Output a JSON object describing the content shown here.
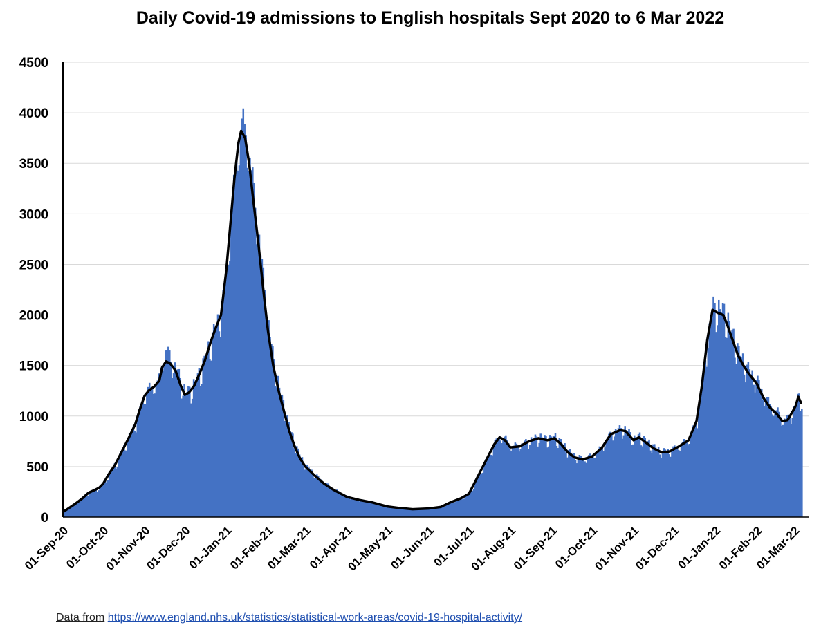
{
  "chart_data": {
    "type": "bar",
    "title": "Daily Covid-19 admissions to English hospitals Sept 2020 to 6 Mar 2022",
    "ylim": [
      0,
      4500
    ],
    "y_ticks": [
      "0",
      "500",
      "1000",
      "1500",
      "2000",
      "2500",
      "3000",
      "3500",
      "4000",
      "4500"
    ],
    "x_ticks": [
      {
        "date": "2020-09-01",
        "label": "01-Sep-20"
      },
      {
        "date": "2020-10-01",
        "label": "01-Oct-20"
      },
      {
        "date": "2020-11-01",
        "label": "01-Nov-20"
      },
      {
        "date": "2020-12-01",
        "label": "01-Dec-20"
      },
      {
        "date": "2021-01-01",
        "label": "01-Jan-21"
      },
      {
        "date": "2021-02-01",
        "label": "01-Feb-21"
      },
      {
        "date": "2021-03-01",
        "label": "01-Mar-21"
      },
      {
        "date": "2021-04-01",
        "label": "01-Apr-21"
      },
      {
        "date": "2021-05-01",
        "label": "01-May-21"
      },
      {
        "date": "2021-06-01",
        "label": "01-Jun-21"
      },
      {
        "date": "2021-07-01",
        "label": "01-Jul-21"
      },
      {
        "date": "2021-08-01",
        "label": "01-Aug-21"
      },
      {
        "date": "2021-09-01",
        "label": "01-Sep-21"
      },
      {
        "date": "2021-10-01",
        "label": "01-Oct-21"
      },
      {
        "date": "2021-11-01",
        "label": "01-Nov-21"
      },
      {
        "date": "2021-12-01",
        "label": "01-Dec-21"
      },
      {
        "date": "2022-01-01",
        "label": "01-Jan-22"
      },
      {
        "date": "2022-02-01",
        "label": "01-Feb-22"
      },
      {
        "date": "2022-03-01",
        "label": "01-Mar-22"
      }
    ],
    "x_range": [
      "2020-09-01",
      "2022-03-06"
    ],
    "grid": true,
    "legend": "none",
    "bar_color": "#4472c4",
    "line_color": "#000000",
    "series": [
      {
        "type": "bar",
        "points": [
          [
            "2020-09-01",
            50
          ],
          [
            "2020-09-05",
            85
          ],
          [
            "2020-09-10",
            130
          ],
          [
            "2020-09-15",
            180
          ],
          [
            "2020-09-20",
            240
          ],
          [
            "2020-09-25",
            270
          ],
          [
            "2020-09-28",
            290
          ],
          [
            "2020-10-01",
            330
          ],
          [
            "2020-10-05",
            420
          ],
          [
            "2020-10-10",
            520
          ],
          [
            "2020-10-15",
            650
          ],
          [
            "2020-10-20",
            780
          ],
          [
            "2020-10-25",
            920
          ],
          [
            "2020-10-28",
            1050
          ],
          [
            "2020-11-01",
            1200
          ],
          [
            "2020-11-04",
            1250
          ],
          [
            "2020-11-08",
            1290
          ],
          [
            "2020-11-12",
            1350
          ],
          [
            "2020-11-14",
            1550
          ],
          [
            "2020-11-17",
            1640
          ],
          [
            "2020-11-20",
            1520
          ],
          [
            "2020-11-24",
            1450
          ],
          [
            "2020-11-28",
            1300
          ],
          [
            "2020-12-01",
            1210
          ],
          [
            "2020-12-04",
            1230
          ],
          [
            "2020-12-08",
            1300
          ],
          [
            "2020-12-12",
            1420
          ],
          [
            "2020-12-16",
            1550
          ],
          [
            "2020-12-20",
            1720
          ],
          [
            "2020-12-24",
            1870
          ],
          [
            "2020-12-28",
            2000
          ],
          [
            "2021-01-01",
            2450
          ],
          [
            "2021-01-04",
            2900
          ],
          [
            "2021-01-07",
            3350
          ],
          [
            "2021-01-10",
            3700
          ],
          [
            "2021-01-12",
            3820
          ],
          [
            "2021-01-15",
            3750
          ],
          [
            "2021-01-18",
            3500
          ],
          [
            "2021-01-21",
            3150
          ],
          [
            "2021-01-25",
            2700
          ],
          [
            "2021-01-29",
            2200
          ],
          [
            "2021-02-01",
            1850
          ],
          [
            "2021-02-05",
            1500
          ],
          [
            "2021-02-09",
            1250
          ],
          [
            "2021-02-13",
            1050
          ],
          [
            "2021-02-17",
            850
          ],
          [
            "2021-02-21",
            700
          ],
          [
            "2021-02-25",
            580
          ],
          [
            "2021-03-01",
            500
          ],
          [
            "2021-03-08",
            410
          ],
          [
            "2021-03-15",
            330
          ],
          [
            "2021-03-22",
            270
          ],
          [
            "2021-04-01",
            200
          ],
          [
            "2021-04-10",
            170
          ],
          [
            "2021-04-20",
            145
          ],
          [
            "2021-05-01",
            105
          ],
          [
            "2021-05-10",
            90
          ],
          [
            "2021-05-20",
            78
          ],
          [
            "2021-06-01",
            85
          ],
          [
            "2021-06-10",
            100
          ],
          [
            "2021-06-18",
            150
          ],
          [
            "2021-06-25",
            185
          ],
          [
            "2021-07-01",
            230
          ],
          [
            "2021-07-05",
            330
          ],
          [
            "2021-07-10",
            460
          ],
          [
            "2021-07-15",
            590
          ],
          [
            "2021-07-20",
            720
          ],
          [
            "2021-07-24",
            790
          ],
          [
            "2021-07-28",
            760
          ],
          [
            "2021-08-01",
            690
          ],
          [
            "2021-08-08",
            700
          ],
          [
            "2021-08-15",
            750
          ],
          [
            "2021-08-22",
            780
          ],
          [
            "2021-08-29",
            760
          ],
          [
            "2021-09-03",
            780
          ],
          [
            "2021-09-08",
            720
          ],
          [
            "2021-09-13",
            640
          ],
          [
            "2021-09-18",
            590
          ],
          [
            "2021-09-24",
            570
          ],
          [
            "2021-10-01",
            600
          ],
          [
            "2021-10-08",
            680
          ],
          [
            "2021-10-15",
            820
          ],
          [
            "2021-10-22",
            860
          ],
          [
            "2021-10-26",
            850
          ],
          [
            "2021-11-01",
            760
          ],
          [
            "2021-11-05",
            790
          ],
          [
            "2021-11-10",
            740
          ],
          [
            "2021-11-16",
            680
          ],
          [
            "2021-11-22",
            640
          ],
          [
            "2021-11-28",
            650
          ],
          [
            "2021-12-05",
            700
          ],
          [
            "2021-12-12",
            760
          ],
          [
            "2021-12-18",
            950
          ],
          [
            "2021-12-22",
            1300
          ],
          [
            "2021-12-26",
            1750
          ],
          [
            "2021-12-30",
            2050
          ],
          [
            "2022-01-03",
            2020
          ],
          [
            "2022-01-07",
            2000
          ],
          [
            "2022-01-10",
            1900
          ],
          [
            "2022-01-14",
            1750
          ],
          [
            "2022-01-18",
            1600
          ],
          [
            "2022-01-22",
            1500
          ],
          [
            "2022-01-26",
            1420
          ],
          [
            "2022-02-01",
            1320
          ],
          [
            "2022-02-06",
            1180
          ],
          [
            "2022-02-11",
            1080
          ],
          [
            "2022-02-16",
            1020
          ],
          [
            "2022-02-20",
            950
          ],
          [
            "2022-02-24",
            960
          ],
          [
            "2022-02-28",
            1050
          ],
          [
            "2022-03-02",
            1100
          ],
          [
            "2022-03-04",
            1190
          ],
          [
            "2022-03-06",
            1130
          ]
        ]
      },
      {
        "type": "line",
        "points": [
          [
            "2020-09-01",
            50
          ],
          [
            "2020-09-05",
            85
          ],
          [
            "2020-09-10",
            130
          ],
          [
            "2020-09-15",
            180
          ],
          [
            "2020-09-20",
            240
          ],
          [
            "2020-09-25",
            270
          ],
          [
            "2020-09-28",
            290
          ],
          [
            "2020-10-01",
            330
          ],
          [
            "2020-10-05",
            420
          ],
          [
            "2020-10-10",
            520
          ],
          [
            "2020-10-15",
            650
          ],
          [
            "2020-10-20",
            780
          ],
          [
            "2020-10-25",
            920
          ],
          [
            "2020-10-28",
            1050
          ],
          [
            "2020-11-01",
            1200
          ],
          [
            "2020-11-04",
            1250
          ],
          [
            "2020-11-08",
            1290
          ],
          [
            "2020-11-12",
            1350
          ],
          [
            "2020-11-14",
            1480
          ],
          [
            "2020-11-17",
            1540
          ],
          [
            "2020-11-20",
            1520
          ],
          [
            "2020-11-24",
            1450
          ],
          [
            "2020-11-28",
            1300
          ],
          [
            "2020-12-01",
            1210
          ],
          [
            "2020-12-04",
            1230
          ],
          [
            "2020-12-08",
            1300
          ],
          [
            "2020-12-12",
            1420
          ],
          [
            "2020-12-16",
            1550
          ],
          [
            "2020-12-20",
            1720
          ],
          [
            "2020-12-24",
            1870
          ],
          [
            "2020-12-28",
            2000
          ],
          [
            "2021-01-01",
            2450
          ],
          [
            "2021-01-04",
            2900
          ],
          [
            "2021-01-07",
            3350
          ],
          [
            "2021-01-10",
            3700
          ],
          [
            "2021-01-12",
            3820
          ],
          [
            "2021-01-15",
            3750
          ],
          [
            "2021-01-18",
            3500
          ],
          [
            "2021-01-21",
            3150
          ],
          [
            "2021-01-25",
            2700
          ],
          [
            "2021-01-29",
            2200
          ],
          [
            "2021-02-01",
            1850
          ],
          [
            "2021-02-05",
            1500
          ],
          [
            "2021-02-09",
            1250
          ],
          [
            "2021-02-13",
            1050
          ],
          [
            "2021-02-17",
            850
          ],
          [
            "2021-02-21",
            700
          ],
          [
            "2021-02-25",
            580
          ],
          [
            "2021-03-01",
            500
          ],
          [
            "2021-03-08",
            410
          ],
          [
            "2021-03-15",
            330
          ],
          [
            "2021-03-22",
            270
          ],
          [
            "2021-04-01",
            200
          ],
          [
            "2021-04-10",
            170
          ],
          [
            "2021-04-20",
            145
          ],
          [
            "2021-05-01",
            105
          ],
          [
            "2021-05-10",
            90
          ],
          [
            "2021-05-20",
            78
          ],
          [
            "2021-06-01",
            85
          ],
          [
            "2021-06-10",
            100
          ],
          [
            "2021-06-18",
            150
          ],
          [
            "2021-06-25",
            185
          ],
          [
            "2021-07-01",
            230
          ],
          [
            "2021-07-05",
            330
          ],
          [
            "2021-07-10",
            460
          ],
          [
            "2021-07-15",
            590
          ],
          [
            "2021-07-20",
            720
          ],
          [
            "2021-07-24",
            790
          ],
          [
            "2021-07-28",
            760
          ],
          [
            "2021-08-01",
            690
          ],
          [
            "2021-08-08",
            700
          ],
          [
            "2021-08-15",
            750
          ],
          [
            "2021-08-22",
            780
          ],
          [
            "2021-08-29",
            760
          ],
          [
            "2021-09-03",
            780
          ],
          [
            "2021-09-08",
            720
          ],
          [
            "2021-09-13",
            640
          ],
          [
            "2021-09-18",
            590
          ],
          [
            "2021-09-24",
            570
          ],
          [
            "2021-10-01",
            600
          ],
          [
            "2021-10-08",
            680
          ],
          [
            "2021-10-15",
            820
          ],
          [
            "2021-10-22",
            860
          ],
          [
            "2021-10-26",
            850
          ],
          [
            "2021-11-01",
            760
          ],
          [
            "2021-11-05",
            790
          ],
          [
            "2021-11-10",
            740
          ],
          [
            "2021-11-16",
            680
          ],
          [
            "2021-11-22",
            640
          ],
          [
            "2021-11-28",
            650
          ],
          [
            "2021-12-05",
            700
          ],
          [
            "2021-12-12",
            760
          ],
          [
            "2021-12-18",
            950
          ],
          [
            "2021-12-22",
            1300
          ],
          [
            "2021-12-26",
            1750
          ],
          [
            "2021-12-30",
            2050
          ],
          [
            "2022-01-03",
            2020
          ],
          [
            "2022-01-07",
            2000
          ],
          [
            "2022-01-10",
            1900
          ],
          [
            "2022-01-14",
            1750
          ],
          [
            "2022-01-18",
            1600
          ],
          [
            "2022-01-22",
            1500
          ],
          [
            "2022-01-26",
            1420
          ],
          [
            "2022-02-01",
            1320
          ],
          [
            "2022-02-06",
            1180
          ],
          [
            "2022-02-11",
            1080
          ],
          [
            "2022-02-16",
            1020
          ],
          [
            "2022-02-20",
            950
          ],
          [
            "2022-02-24",
            960
          ],
          [
            "2022-02-28",
            1050
          ],
          [
            "2022-03-02",
            1100
          ],
          [
            "2022-03-04",
            1190
          ],
          [
            "2022-03-06",
            1130
          ]
        ]
      }
    ]
  },
  "footer": {
    "prefix": "Data from",
    "link_text": "https://www.england.nhs.uk/statistics/statistical-work-areas/covid-19-hospital-activity/"
  }
}
